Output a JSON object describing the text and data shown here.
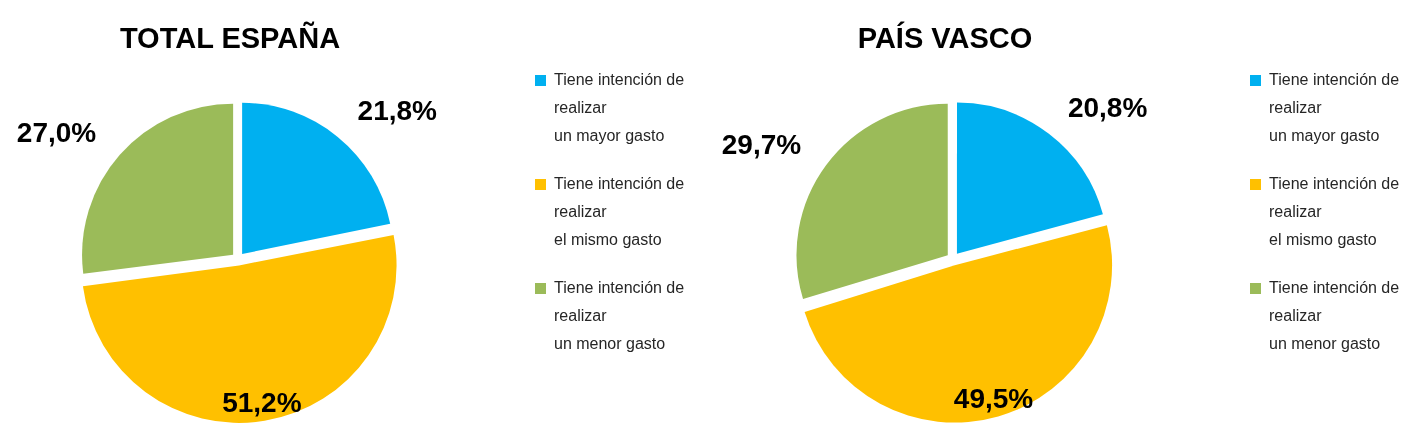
{
  "chart_data": [
    {
      "type": "pie",
      "title": "TOTAL ESPAÑA",
      "categories": [
        "Tiene intención de realizar\nun mayor gasto",
        "Tiene intención de realizar\nel mismo gasto",
        "Tiene intención de realizar\nun menor gasto"
      ],
      "values": [
        21.8,
        51.2,
        27.0
      ],
      "colors": [
        "#00b0f0",
        "#ffc000",
        "#9bbb59"
      ],
      "value_labels": [
        "21,8%",
        "51,2%",
        "27,0%"
      ],
      "legend": "right"
    },
    {
      "type": "pie",
      "title": "PAÍS VASCO",
      "categories": [
        "Tiene intención de realizar\nun mayor gasto",
        "Tiene intención de realizar\nel mismo gasto",
        "Tiene intención de realizar\nun menor gasto"
      ],
      "values": [
        20.8,
        49.5,
        29.7
      ],
      "colors": [
        "#00b0f0",
        "#ffc000",
        "#9bbb59"
      ],
      "value_labels": [
        "20,8%",
        "49,5%",
        "29,7%"
      ],
      "legend": "right"
    }
  ]
}
